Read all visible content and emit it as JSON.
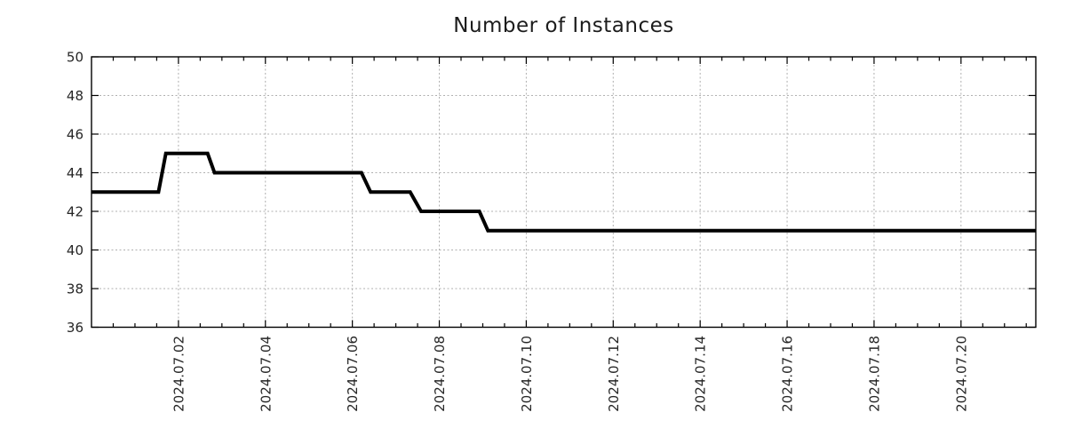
{
  "chart_data": {
    "type": "line",
    "title": "Number of Instances",
    "xlabel": "",
    "ylabel": "",
    "grid": true,
    "legend": "none",
    "x_axis": {
      "kind": "time",
      "range_days": [
        0,
        21.72
      ],
      "range_start": "2024.06.30 00:00",
      "range_end": "2024.07.21 17:00",
      "major_ticks": [
        {
          "day": 2,
          "label": "2024.07.02"
        },
        {
          "day": 4,
          "label": "2024.07.04"
        },
        {
          "day": 6,
          "label": "2024.07.06"
        },
        {
          "day": 8,
          "label": "2024.07.08"
        },
        {
          "day": 10,
          "label": "2024.07.10"
        },
        {
          "day": 12,
          "label": "2024.07.12"
        },
        {
          "day": 14,
          "label": "2024.07.14"
        },
        {
          "day": 16,
          "label": "2024.07.16"
        },
        {
          "day": 18,
          "label": "2024.07.18"
        },
        {
          "day": 20,
          "label": "2024.07.20"
        }
      ],
      "minor_step_days": 0.5,
      "tick_label_rotation_deg": -90
    },
    "y_axis": {
      "range": [
        36,
        50
      ],
      "ticks": [
        36,
        38,
        40,
        42,
        44,
        46,
        48,
        50
      ]
    },
    "series": [
      {
        "name": "instances",
        "color": "#000000",
        "points": [
          {
            "time": "2024.06.30 00:00",
            "day": 0.0,
            "value": 43
          },
          {
            "time": "2024.07.01 13:00",
            "day": 1.54,
            "value": 43
          },
          {
            "time": "2024.07.01 17:00",
            "day": 1.71,
            "value": 45
          },
          {
            "time": "2024.07.02 16:00",
            "day": 2.67,
            "value": 45
          },
          {
            "time": "2024.07.02 20:00",
            "day": 2.83,
            "value": 44
          },
          {
            "time": "2024.07.06 05:00",
            "day": 6.21,
            "value": 44
          },
          {
            "time": "2024.07.06 10:00",
            "day": 6.42,
            "value": 43
          },
          {
            "time": "2024.07.07 08:00",
            "day": 7.33,
            "value": 43
          },
          {
            "time": "2024.07.07 14:00",
            "day": 7.58,
            "value": 42
          },
          {
            "time": "2024.07.08 22:00",
            "day": 8.92,
            "value": 42
          },
          {
            "time": "2024.07.09 03:00",
            "day": 9.12,
            "value": 41
          },
          {
            "time": "2024.07.21 17:00",
            "day": 21.72,
            "value": 41
          }
        ]
      }
    ],
    "style": {
      "line_color": "#000000",
      "line_width": 4,
      "grid_color": "#b0b0b0",
      "axis_color": "#000000",
      "text_color": "#262626",
      "background": "#ffffff"
    }
  }
}
